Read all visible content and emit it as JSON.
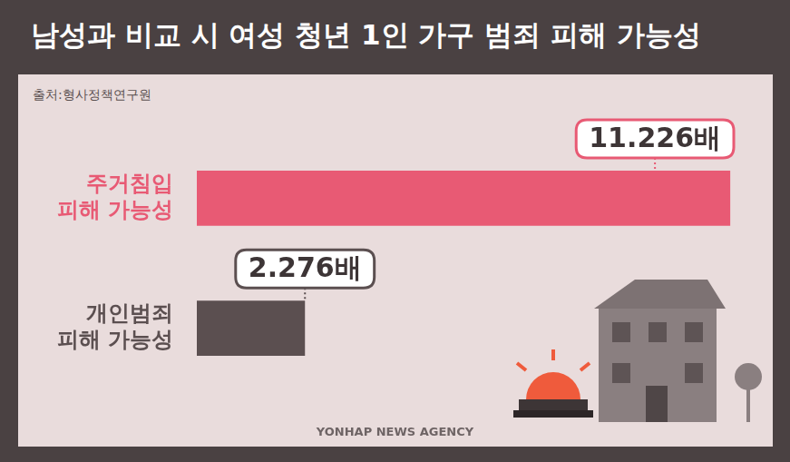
{
  "chart_data": {
    "type": "bar",
    "orientation": "horizontal",
    "title": "남성과 비교 시 여성 청년 1인 가구 범죄 피해 가능성",
    "subtitle": "출처:형사정책연구원",
    "annotations": [
      "YONHAP NEWS AGENCY"
    ],
    "categories": [
      [
        "주거침입",
        "피해 가능성"
      ],
      [
        "개인범죄",
        "피해 가능성"
      ]
    ],
    "values": [
      11.226,
      2.276
    ],
    "value_labels": [
      "11.226배",
      "2.276배"
    ],
    "colors": [
      "#e85a74",
      "#5b4f50"
    ],
    "xlim": [
      0,
      11.3
    ],
    "grid": false,
    "data_labels": true,
    "tick_labels": false
  }
}
